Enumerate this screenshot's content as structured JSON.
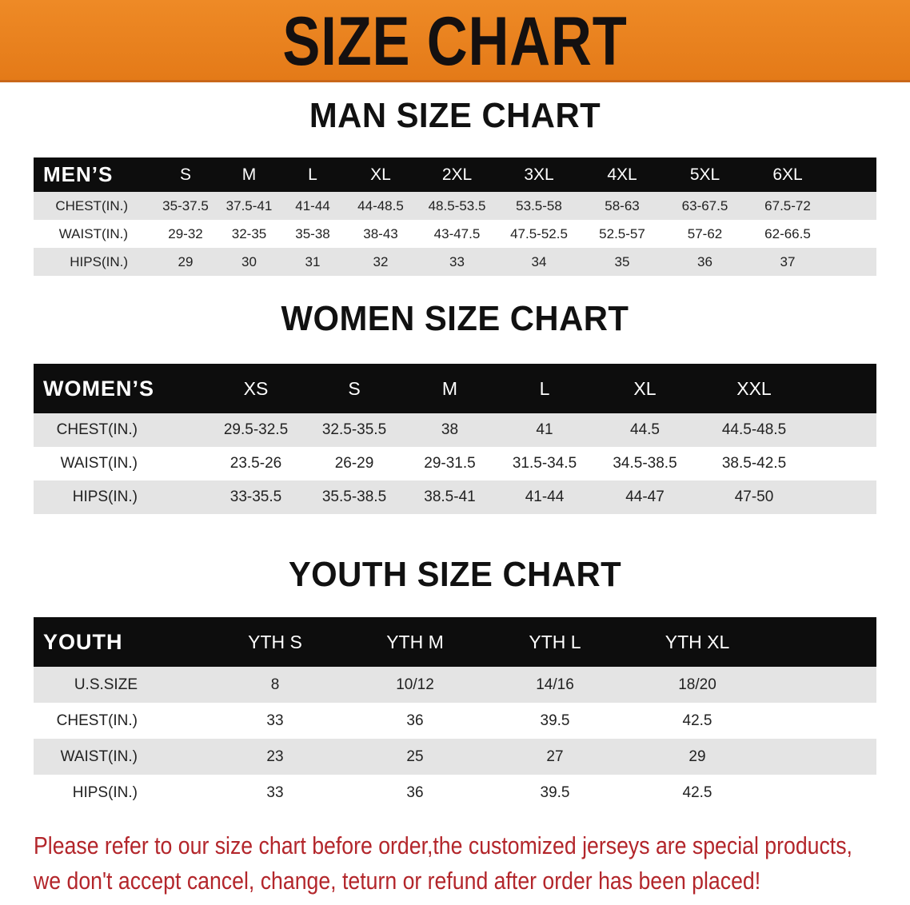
{
  "banner_title": "SIZE CHART",
  "men": {
    "title": "MAN SIZE CHART",
    "header": [
      "MEN’S",
      "S",
      "M",
      "L",
      "XL",
      "2XL",
      "3XL",
      "4XL",
      "5XL",
      "6XL"
    ],
    "rows": [
      [
        "CHEST(IN.)",
        "35-37.5",
        "37.5-41",
        "41-44",
        "44-48.5",
        "48.5-53.5",
        "53.5-58",
        "58-63",
        "63-67.5",
        "67.5-72"
      ],
      [
        "WAIST(IN.)",
        "29-32",
        "32-35",
        "35-38",
        "38-43",
        "43-47.5",
        "47.5-52.5",
        "52.5-57",
        "57-62",
        "62-66.5"
      ],
      [
        "HIPS(IN.)",
        "29",
        "30",
        "31",
        "32",
        "33",
        "34",
        "35",
        "36",
        "37"
      ]
    ]
  },
  "women": {
    "title": "WOMEN SIZE CHART",
    "header": [
      "WOMEN’S",
      "XS",
      "S",
      "M",
      "L",
      "XL",
      "XXL"
    ],
    "rows": [
      [
        "CHEST(IN.)",
        "29.5-32.5",
        "32.5-35.5",
        "38",
        "41",
        "44.5",
        "44.5-48.5"
      ],
      [
        "WAIST(IN.)",
        "23.5-26",
        "26-29",
        "29-31.5",
        "31.5-34.5",
        "34.5-38.5",
        "38.5-42.5"
      ],
      [
        "HIPS(IN.)",
        "33-35.5",
        "35.5-38.5",
        "38.5-41",
        "41-44",
        "44-47",
        "47-50"
      ]
    ]
  },
  "youth": {
    "title": "YOUTH SIZE CHART",
    "header": [
      "YOUTH",
      "YTH S",
      "YTH M",
      "YTH L",
      "YTH XL"
    ],
    "rows": [
      [
        "U.S.SIZE",
        "8",
        "10/12",
        "14/16",
        "18/20"
      ],
      [
        "CHEST(IN.)",
        "33",
        "36",
        "39.5",
        "42.5"
      ],
      [
        "WAIST(IN.)",
        "23",
        "25",
        "27",
        "29"
      ],
      [
        "HIPS(IN.)",
        "33",
        "36",
        "39.5",
        "42.5"
      ]
    ]
  },
  "notice": [
    "Please refer to our size chart before order,the customized jerseys are special products,",
    "we don't accept cancel, change, teturn or refund after order has been placed!"
  ],
  "colors": {
    "banner": "#e8801f",
    "header_row": "#0d0d0d",
    "shaded_row": "#e4e4e4",
    "notice_text": "#b3262b"
  }
}
